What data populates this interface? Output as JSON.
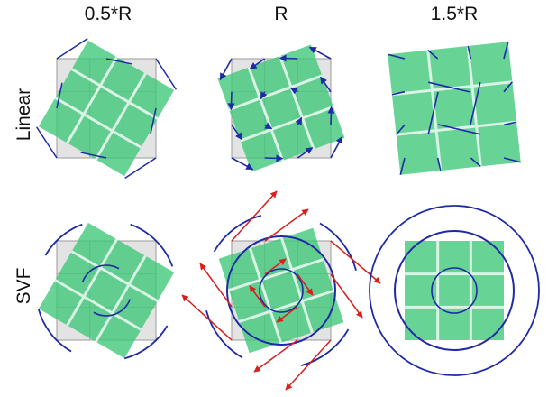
{
  "columns": [
    "0.5*R",
    "R",
    "1.5*R"
  ],
  "rows": [
    "Linear",
    "SVF"
  ],
  "colors": {
    "grid_fill": "#e3e3e3",
    "grid_stroke": "#a9a9a9",
    "rotated_fill": "#3cc878",
    "rotated_opacity": 0.78,
    "inner_line": "#d9f3e4",
    "blue": "#1f2aa6",
    "red": "#d81e1e"
  },
  "panels": [
    {
      "row": "Linear",
      "col": "0.5*R",
      "rotation_deg": 30,
      "scale": 1.0,
      "show_grid": true,
      "overlay": "linear-small"
    },
    {
      "row": "Linear",
      "col": "R",
      "rotation_deg": -20,
      "scale": 1.0,
      "show_grid": true,
      "overlay": "linear-arrows"
    },
    {
      "row": "Linear",
      "col": "1.5*R",
      "rotation_deg": -6,
      "scale": 1.22,
      "show_grid": false,
      "overlay": "linear-long"
    },
    {
      "row": "SVF",
      "col": "0.5*R",
      "rotation_deg": 30,
      "scale": 1.0,
      "show_grid": true,
      "overlay": "svf-arcs"
    },
    {
      "row": "SVF",
      "col": "R",
      "rotation_deg": -18,
      "scale": 1.0,
      "show_grid": true,
      "overlay": "svf-arrows"
    },
    {
      "row": "SVF",
      "col": "1.5*R",
      "rotation_deg": 0,
      "scale": 1.0,
      "show_grid": false,
      "overlay": "svf-circles"
    }
  ]
}
